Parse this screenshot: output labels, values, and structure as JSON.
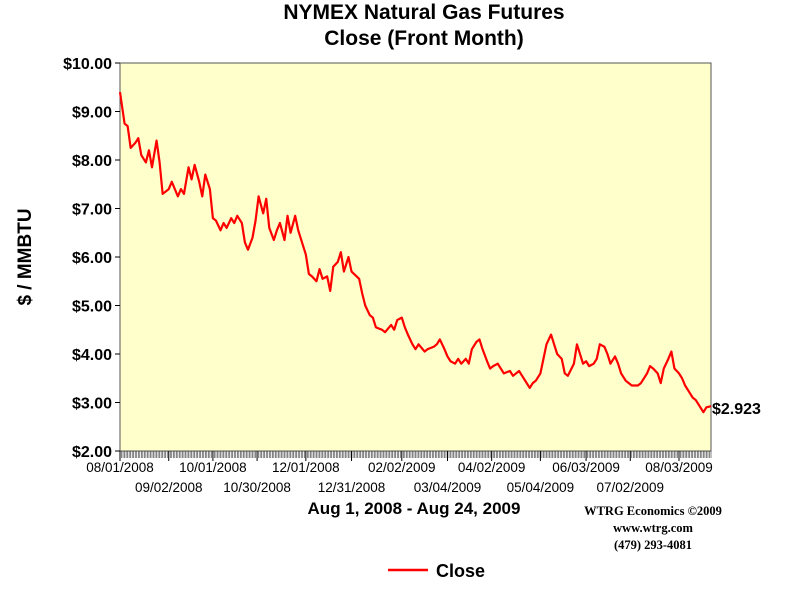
{
  "chart_data": {
    "type": "line",
    "title": "NYMEX Natural Gas Futures",
    "subtitle": "Close (Front Month)",
    "ylabel": "$ / MMBTU",
    "xlabel": "Aug 1, 2008 - Aug 24, 2009",
    "ylim": [
      2.0,
      10.0
    ],
    "yticks": [
      "$2.00",
      "$3.00",
      "$4.00",
      "$5.00",
      "$6.00",
      "$7.00",
      "$8.00",
      "$9.00",
      "$10.00"
    ],
    "xlim": [
      "2008-08-01",
      "2009-08-24"
    ],
    "xticks": [
      {
        "date": "2008-08-01",
        "label": "08/01/2008"
      },
      {
        "date": "2008-09-02",
        "label": "09/02/2008"
      },
      {
        "date": "2008-10-01",
        "label": "10/01/2008"
      },
      {
        "date": "2008-10-30",
        "label": "10/30/2008"
      },
      {
        "date": "2008-12-01",
        "label": "12/01/2008"
      },
      {
        "date": "2008-12-31",
        "label": "12/31/2008"
      },
      {
        "date": "2009-02-02",
        "label": "02/02/2009"
      },
      {
        "date": "2009-03-04",
        "label": "03/04/2009"
      },
      {
        "date": "2009-04-02",
        "label": "04/02/2009"
      },
      {
        "date": "2009-05-04",
        "label": "05/04/2009"
      },
      {
        "date": "2009-06-03",
        "label": "06/03/2009"
      },
      {
        "date": "2009-07-02",
        "label": "07/02/2009"
      },
      {
        "date": "2009-08-03",
        "label": "08/03/2009"
      }
    ],
    "grid": false,
    "legend_position": "bottom",
    "series": [
      {
        "name": "Close",
        "color": "#ff0000",
        "points": [
          [
            "2008-08-01",
            9.4
          ],
          [
            "2008-08-04",
            8.75
          ],
          [
            "2008-08-06",
            8.7
          ],
          [
            "2008-08-08",
            8.25
          ],
          [
            "2008-08-11",
            8.35
          ],
          [
            "2008-08-13",
            8.45
          ],
          [
            "2008-08-15",
            8.1
          ],
          [
            "2008-08-18",
            7.95
          ],
          [
            "2008-08-20",
            8.2
          ],
          [
            "2008-08-22",
            7.85
          ],
          [
            "2008-08-25",
            8.4
          ],
          [
            "2008-08-27",
            7.95
          ],
          [
            "2008-08-29",
            7.3
          ],
          [
            "2008-09-02",
            7.4
          ],
          [
            "2008-09-04",
            7.55
          ],
          [
            "2008-09-08",
            7.25
          ],
          [
            "2008-09-10",
            7.4
          ],
          [
            "2008-09-12",
            7.3
          ],
          [
            "2008-09-15",
            7.85
          ],
          [
            "2008-09-17",
            7.6
          ],
          [
            "2008-09-19",
            7.9
          ],
          [
            "2008-09-22",
            7.55
          ],
          [
            "2008-09-24",
            7.25
          ],
          [
            "2008-09-26",
            7.7
          ],
          [
            "2008-09-29",
            7.4
          ],
          [
            "2008-10-01",
            6.8
          ],
          [
            "2008-10-03",
            6.75
          ],
          [
            "2008-10-06",
            6.55
          ],
          [
            "2008-10-08",
            6.7
          ],
          [
            "2008-10-10",
            6.6
          ],
          [
            "2008-10-13",
            6.8
          ],
          [
            "2008-10-15",
            6.7
          ],
          [
            "2008-10-17",
            6.85
          ],
          [
            "2008-10-20",
            6.7
          ],
          [
            "2008-10-22",
            6.3
          ],
          [
            "2008-10-24",
            6.15
          ],
          [
            "2008-10-27",
            6.4
          ],
          [
            "2008-10-29",
            6.75
          ],
          [
            "2008-10-31",
            7.25
          ],
          [
            "2008-11-03",
            6.9
          ],
          [
            "2008-11-05",
            7.2
          ],
          [
            "2008-11-07",
            6.6
          ],
          [
            "2008-11-10",
            6.35
          ],
          [
            "2008-11-12",
            6.55
          ],
          [
            "2008-11-14",
            6.7
          ],
          [
            "2008-11-17",
            6.35
          ],
          [
            "2008-11-19",
            6.85
          ],
          [
            "2008-11-21",
            6.5
          ],
          [
            "2008-11-24",
            6.85
          ],
          [
            "2008-11-26",
            6.55
          ],
          [
            "2008-12-01",
            6.05
          ],
          [
            "2008-12-03",
            5.65
          ],
          [
            "2008-12-05",
            5.6
          ],
          [
            "2008-12-08",
            5.5
          ],
          [
            "2008-12-10",
            5.75
          ],
          [
            "2008-12-12",
            5.55
          ],
          [
            "2008-12-15",
            5.6
          ],
          [
            "2008-12-17",
            5.3
          ],
          [
            "2008-12-19",
            5.8
          ],
          [
            "2008-12-22",
            5.9
          ],
          [
            "2008-12-24",
            6.1
          ],
          [
            "2008-12-26",
            5.7
          ],
          [
            "2008-12-29",
            6.0
          ],
          [
            "2008-12-31",
            5.7
          ],
          [
            "2009-01-05",
            5.55
          ],
          [
            "2009-01-07",
            5.25
          ],
          [
            "2009-01-09",
            5.0
          ],
          [
            "2009-01-12",
            4.8
          ],
          [
            "2009-01-14",
            4.75
          ],
          [
            "2009-01-16",
            4.55
          ],
          [
            "2009-01-20",
            4.5
          ],
          [
            "2009-01-22",
            4.45
          ],
          [
            "2009-01-26",
            4.6
          ],
          [
            "2009-01-28",
            4.5
          ],
          [
            "2009-01-30",
            4.7
          ],
          [
            "2009-02-02",
            4.75
          ],
          [
            "2009-02-04",
            4.55
          ],
          [
            "2009-02-06",
            4.4
          ],
          [
            "2009-02-09",
            4.2
          ],
          [
            "2009-02-11",
            4.1
          ],
          [
            "2009-02-13",
            4.2
          ],
          [
            "2009-02-17",
            4.05
          ],
          [
            "2009-02-19",
            4.1
          ],
          [
            "2009-02-23",
            4.15
          ],
          [
            "2009-02-25",
            4.2
          ],
          [
            "2009-02-27",
            4.3
          ],
          [
            "2009-03-02",
            4.1
          ],
          [
            "2009-03-04",
            3.95
          ],
          [
            "2009-03-06",
            3.85
          ],
          [
            "2009-03-09",
            3.8
          ],
          [
            "2009-03-11",
            3.9
          ],
          [
            "2009-03-13",
            3.8
          ],
          [
            "2009-03-16",
            3.9
          ],
          [
            "2009-03-18",
            3.8
          ],
          [
            "2009-03-20",
            4.1
          ],
          [
            "2009-03-23",
            4.25
          ],
          [
            "2009-03-25",
            4.3
          ],
          [
            "2009-03-27",
            4.1
          ],
          [
            "2009-03-30",
            3.85
          ],
          [
            "2009-04-01",
            3.7
          ],
          [
            "2009-04-03",
            3.75
          ],
          [
            "2009-04-06",
            3.8
          ],
          [
            "2009-04-08",
            3.7
          ],
          [
            "2009-04-10",
            3.6
          ],
          [
            "2009-04-14",
            3.65
          ],
          [
            "2009-04-16",
            3.55
          ],
          [
            "2009-04-20",
            3.65
          ],
          [
            "2009-04-22",
            3.55
          ],
          [
            "2009-04-24",
            3.45
          ],
          [
            "2009-04-27",
            3.3
          ],
          [
            "2009-04-29",
            3.4
          ],
          [
            "2009-05-01",
            3.45
          ],
          [
            "2009-05-04",
            3.6
          ],
          [
            "2009-05-06",
            3.9
          ],
          [
            "2009-05-08",
            4.2
          ],
          [
            "2009-05-11",
            4.4
          ],
          [
            "2009-05-13",
            4.2
          ],
          [
            "2009-05-15",
            4.0
          ],
          [
            "2009-05-18",
            3.9
          ],
          [
            "2009-05-20",
            3.6
          ],
          [
            "2009-05-22",
            3.55
          ],
          [
            "2009-05-26",
            3.8
          ],
          [
            "2009-05-28",
            4.2
          ],
          [
            "2009-06-01",
            3.8
          ],
          [
            "2009-06-03",
            3.85
          ],
          [
            "2009-06-05",
            3.75
          ],
          [
            "2009-06-08",
            3.8
          ],
          [
            "2009-06-10",
            3.9
          ],
          [
            "2009-06-12",
            4.2
          ],
          [
            "2009-06-15",
            4.15
          ],
          [
            "2009-06-17",
            4.0
          ],
          [
            "2009-06-19",
            3.8
          ],
          [
            "2009-06-22",
            3.95
          ],
          [
            "2009-06-24",
            3.8
          ],
          [
            "2009-06-26",
            3.6
          ],
          [
            "2009-06-29",
            3.45
          ],
          [
            "2009-07-01",
            3.4
          ],
          [
            "2009-07-03",
            3.35
          ],
          [
            "2009-07-07",
            3.35
          ],
          [
            "2009-07-09",
            3.4
          ],
          [
            "2009-07-13",
            3.6
          ],
          [
            "2009-07-15",
            3.75
          ],
          [
            "2009-07-17",
            3.7
          ],
          [
            "2009-07-20",
            3.6
          ],
          [
            "2009-07-22",
            3.4
          ],
          [
            "2009-07-24",
            3.7
          ],
          [
            "2009-07-27",
            3.9
          ],
          [
            "2009-07-29",
            4.05
          ],
          [
            "2009-07-31",
            3.7
          ],
          [
            "2009-08-03",
            3.6
          ],
          [
            "2009-08-05",
            3.5
          ],
          [
            "2009-08-07",
            3.35
          ],
          [
            "2009-08-10",
            3.2
          ],
          [
            "2009-08-12",
            3.1
          ],
          [
            "2009-08-14",
            3.05
          ],
          [
            "2009-08-17",
            2.9
          ],
          [
            "2009-08-19",
            2.8
          ],
          [
            "2009-08-21",
            2.9
          ],
          [
            "2009-08-24",
            2.923
          ]
        ]
      }
    ],
    "last_value_label": "$2.923"
  },
  "credits": {
    "line1": "WTRG Economics  ©2009",
    "line2": "www.wtrg.com",
    "line3": "(479) 293-4081"
  },
  "colors": {
    "plot_background": "#ffffcc",
    "series": "#ff0000"
  }
}
